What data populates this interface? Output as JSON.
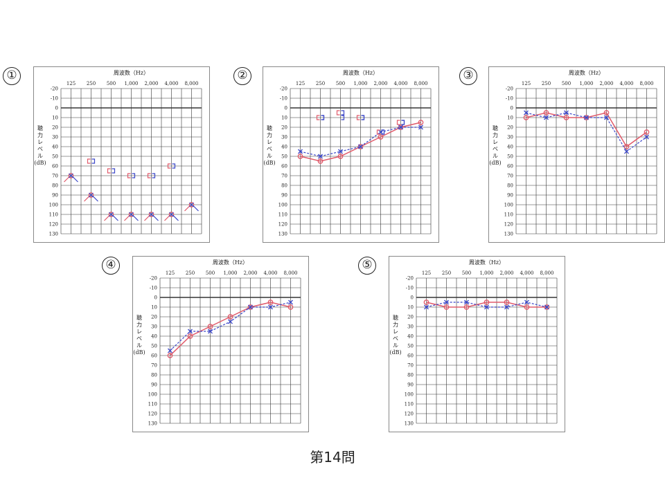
{
  "caption": "第14問",
  "colors": {
    "right_ear": "#e05a6a",
    "left_ear": "#3a45c8",
    "grid": "#333333",
    "frame": "#888888"
  },
  "chart_data": [
    {
      "number": "①",
      "type": "line",
      "title": "周波数（Hz）",
      "x_ticks": [
        "125",
        "250",
        "500",
        "1,000",
        "2,000",
        "4,000",
        "8,000"
      ],
      "y_ticks": [
        "-20",
        "-10",
        "0",
        "10",
        "20",
        "30",
        "40",
        "50",
        "60",
        "70",
        "80",
        "90",
        "100",
        "110",
        "120",
        "130"
      ],
      "ylabel_chars": [
        "聴",
        "力",
        "レ",
        "ベ",
        "ル",
        "(dB)"
      ],
      "ylim": [
        -20,
        130
      ],
      "series": [
        {
          "ear": "right",
          "kind": "air",
          "connected": false,
          "values": [
            70,
            90,
            110,
            110,
            110,
            110,
            100
          ]
        },
        {
          "ear": "right",
          "kind": "bone",
          "connected": false,
          "values": [
            null,
            55,
            65,
            70,
            70,
            60,
            null
          ]
        }
      ]
    },
    {
      "number": "②",
      "type": "line",
      "title": "周波数（Hz）",
      "x_ticks": [
        "125",
        "250",
        "500",
        "1,000",
        "2,000",
        "4,000",
        "8,000"
      ],
      "y_ticks": [
        "-20",
        "-10",
        "0",
        "10",
        "20",
        "30",
        "40",
        "50",
        "60",
        "70",
        "80",
        "90",
        "100",
        "110",
        "120",
        "130"
      ],
      "ylabel_chars": [
        "聴",
        "力",
        "レ",
        "ベ",
        "ル",
        "(dB)"
      ],
      "ylim": [
        -20,
        130
      ],
      "series": [
        {
          "ear": "right",
          "kind": "air",
          "connected": true,
          "values": [
            50,
            55,
            50,
            40,
            30,
            20,
            15
          ]
        },
        {
          "ear": "left",
          "kind": "air",
          "connected": true,
          "values": [
            45,
            50,
            45,
            40,
            25,
            20,
            20
          ]
        },
        {
          "ear": "right",
          "kind": "bone",
          "connected": false,
          "values": [
            null,
            10,
            5,
            10,
            25,
            15,
            null
          ]
        },
        {
          "ear": "left",
          "kind": "bone",
          "connected": false,
          "values": [
            null,
            10,
            10,
            10,
            25,
            15,
            null
          ]
        }
      ]
    },
    {
      "number": "③",
      "type": "line",
      "title": "周波数（Hz）",
      "x_ticks": [
        "125",
        "250",
        "500",
        "1,000",
        "2,000",
        "4,000",
        "8,000"
      ],
      "y_ticks": [
        "-20",
        "-10",
        "0",
        "10",
        "20",
        "30",
        "40",
        "50",
        "60",
        "70",
        "80",
        "90",
        "100",
        "110",
        "120",
        "130"
      ],
      "ylabel_chars": [
        "聴",
        "力",
        "レ",
        "ベ",
        "ル",
        "(dB)"
      ],
      "ylim": [
        -20,
        130
      ],
      "series": [
        {
          "ear": "right",
          "kind": "air",
          "connected": true,
          "values": [
            10,
            5,
            10,
            10,
            5,
            40,
            25
          ]
        },
        {
          "ear": "left",
          "kind": "air",
          "connected": true,
          "values": [
            5,
            10,
            5,
            10,
            10,
            45,
            30
          ]
        }
      ]
    },
    {
      "number": "④",
      "type": "line",
      "title": "周波数（Hz）",
      "x_ticks": [
        "125",
        "250",
        "500",
        "1,000",
        "2,000",
        "4,000",
        "8,000"
      ],
      "y_ticks": [
        "-20",
        "-10",
        "0",
        "10",
        "20",
        "30",
        "40",
        "50",
        "60",
        "70",
        "80",
        "90",
        "100",
        "110",
        "120",
        "130"
      ],
      "ylabel_chars": [
        "聴",
        "力",
        "レ",
        "ベ",
        "ル",
        "(dB)"
      ],
      "ylim": [
        -20,
        130
      ],
      "series": [
        {
          "ear": "right",
          "kind": "air",
          "connected": true,
          "values": [
            60,
            40,
            30,
            20,
            10,
            5,
            10
          ]
        },
        {
          "ear": "left",
          "kind": "air",
          "connected": true,
          "values": [
            55,
            35,
            35,
            25,
            10,
            10,
            5
          ]
        }
      ]
    },
    {
      "number": "⑤",
      "type": "line",
      "title": "周波数（Hz）",
      "x_ticks": [
        "125",
        "250",
        "500",
        "1,000",
        "2,000",
        "4,000",
        "8,000"
      ],
      "y_ticks": [
        "-20",
        "-10",
        "0",
        "10",
        "20",
        "30",
        "40",
        "50",
        "60",
        "70",
        "80",
        "90",
        "100",
        "110",
        "120",
        "130"
      ],
      "ylabel_chars": [
        "聴",
        "力",
        "レ",
        "ベ",
        "ル",
        "(dB)"
      ],
      "ylim": [
        -20,
        130
      ],
      "series": [
        {
          "ear": "right",
          "kind": "air",
          "connected": true,
          "values": [
            5,
            10,
            10,
            5,
            5,
            10,
            10
          ]
        },
        {
          "ear": "left",
          "kind": "air",
          "connected": true,
          "values": [
            10,
            5,
            5,
            10,
            10,
            5,
            10
          ]
        }
      ]
    }
  ]
}
